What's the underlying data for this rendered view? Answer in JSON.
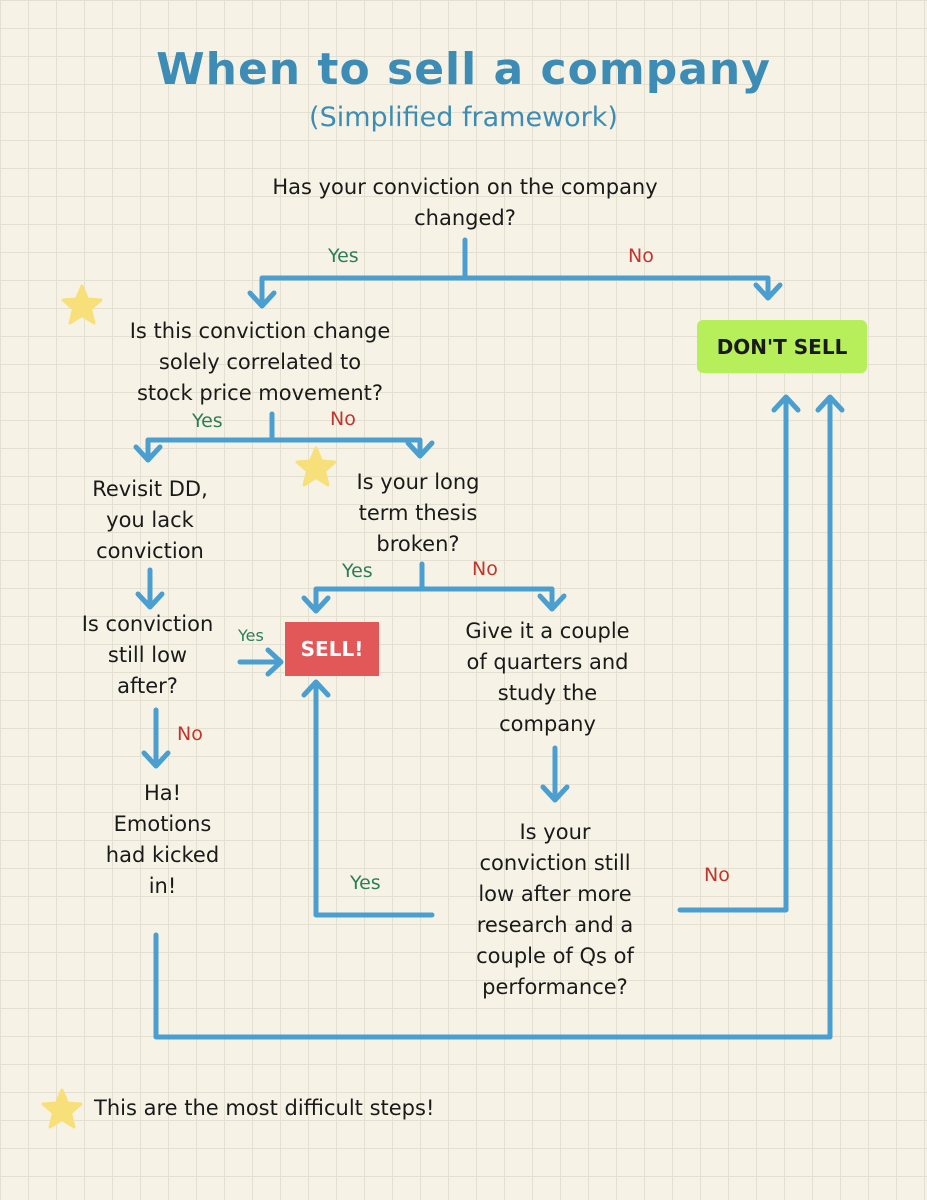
{
  "title": "When to sell a company",
  "subtitle": "(Simplified framework)",
  "nodes": {
    "q1": "Has your conviction on the company\nchanged?",
    "q2": "Is this conviction change\nsolely correlated to\nstock price movement?",
    "dont_sell": "DON'T SELL",
    "revisit": "Revisit DD,\nyou lack\nconviction",
    "q3": "Is your long\nterm thesis\nbroken?",
    "q4": "Is conviction\nstill low\nafter?",
    "sell": "SELL!",
    "give_time": "Give it a couple\nof quarters and\nstudy the\ncompany",
    "emotions": "Ha!\nEmotions\nhad kicked\nin!",
    "q5": "Is your\nconviction still\nlow after more\nresearch and a\ncouple of Qs of\nperformance?"
  },
  "edge_labels": {
    "q1_yes": "Yes",
    "q1_no": "No",
    "q2_yes": "Yes",
    "q2_no": "No",
    "q3_yes": "Yes",
    "q3_no": "No",
    "q4_yes": "Yes",
    "q4_no": "No",
    "q5_yes": "Yes",
    "q5_no": "No"
  },
  "legend": "This are the most difficult steps!",
  "colors": {
    "title": "#3d8cb5",
    "arrow": "#4a9fd0",
    "yes_label": "#2e7d5a",
    "no_label": "#c0362c",
    "dont_sell_box": "#b6ef5a",
    "sell_box": "#e25858",
    "star": "#f7e07a",
    "background": "#f6f3e6"
  }
}
